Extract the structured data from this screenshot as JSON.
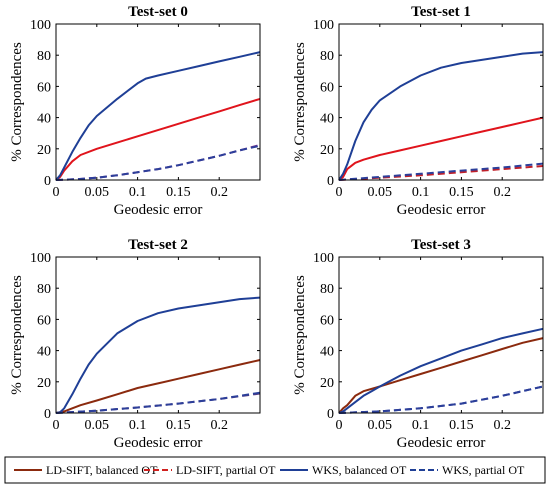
{
  "chart_data": [
    {
      "type": "line",
      "title": "Test-set 0",
      "xlabel": "Geodesic error",
      "ylabel": "% Correspondences",
      "xlim": [
        0,
        0.25
      ],
      "ylim": [
        0,
        100
      ],
      "xticks": [
        "0",
        "0.05",
        "0.1",
        "0.15",
        "0.2"
      ],
      "xtick_values": [
        0,
        0.05,
        0.1,
        0.15,
        0.2
      ],
      "yticks": [
        "0",
        "20",
        "40",
        "60",
        "80",
        "100"
      ],
      "ytick_values": [
        0,
        20,
        40,
        60,
        80,
        100
      ],
      "series": [
        {
          "key": "sift_bal",
          "x": [
            0,
            0.005,
            0.01,
            0.02,
            0.03,
            0.05,
            0.075,
            0.1,
            0.125,
            0.15,
            0.175,
            0.2,
            0.225,
            0.25
          ],
          "y": [
            0,
            2,
            6,
            12,
            16,
            20,
            24,
            28,
            32,
            36,
            40,
            44,
            48,
            52
          ]
        },
        {
          "key": "sift_par",
          "x": [
            0,
            0.025,
            0.05,
            0.075,
            0.1,
            0.125,
            0.15,
            0.175,
            0.2,
            0.225,
            0.25
          ],
          "y": [
            0,
            0.5,
            1.5,
            3,
            5,
            7,
            9.5,
            12.5,
            15.5,
            19,
            22.5
          ]
        },
        {
          "key": "wks_bal",
          "x": [
            0,
            0.005,
            0.01,
            0.02,
            0.03,
            0.04,
            0.05,
            0.075,
            0.1,
            0.11,
            0.125,
            0.15,
            0.175,
            0.2,
            0.225,
            0.25
          ],
          "y": [
            0,
            3,
            8,
            18,
            27,
            35,
            41,
            52,
            62,
            65,
            67,
            70,
            73,
            76,
            79,
            82
          ]
        },
        {
          "key": "wks_par",
          "x": [
            0,
            0.025,
            0.05,
            0.075,
            0.1,
            0.125,
            0.15,
            0.175,
            0.2,
            0.225,
            0.25
          ],
          "y": [
            0,
            0.5,
            1.5,
            3,
            5,
            7,
            9.5,
            12.5,
            15.5,
            19,
            22
          ]
        }
      ]
    },
    {
      "type": "line",
      "title": "Test-set 1",
      "xlabel": "Geodesic error",
      "ylabel": "% Correspondences",
      "xlim": [
        0,
        0.25
      ],
      "ylim": [
        0,
        100
      ],
      "xticks": [
        "0",
        "0.05",
        "0.1",
        "0.15",
        "0.2"
      ],
      "xtick_values": [
        0,
        0.05,
        0.1,
        0.15,
        0.2
      ],
      "yticks": [
        "0",
        "20",
        "40",
        "60",
        "80",
        "100"
      ],
      "ytick_values": [
        0,
        20,
        40,
        60,
        80,
        100
      ],
      "series": [
        {
          "key": "sift_bal",
          "x": [
            0,
            0.005,
            0.01,
            0.02,
            0.03,
            0.05,
            0.075,
            0.1,
            0.125,
            0.15,
            0.175,
            0.2,
            0.225,
            0.25
          ],
          "y": [
            0,
            2,
            7,
            11,
            13,
            16,
            19,
            22,
            25,
            28,
            31,
            34,
            37,
            40
          ]
        },
        {
          "key": "sift_par",
          "x": [
            0,
            0.05,
            0.1,
            0.15,
            0.2,
            0.25
          ],
          "y": [
            0,
            1.5,
            3,
            5,
            7,
            9
          ]
        },
        {
          "key": "wks_bal",
          "x": [
            0,
            0.005,
            0.01,
            0.02,
            0.03,
            0.04,
            0.05,
            0.075,
            0.1,
            0.125,
            0.15,
            0.175,
            0.2,
            0.225,
            0.25
          ],
          "y": [
            0,
            4,
            10,
            25,
            37,
            45,
            51,
            60,
            67,
            72,
            75,
            77,
            79,
            81,
            82
          ]
        },
        {
          "key": "wks_par",
          "x": [
            0,
            0.05,
            0.1,
            0.15,
            0.2,
            0.25
          ],
          "y": [
            0,
            2,
            4,
            6,
            8,
            10.5
          ]
        }
      ]
    },
    {
      "type": "line",
      "title": "Test-set 2",
      "xlabel": "Geodesic error",
      "ylabel": "% Correspondences",
      "xlim": [
        0,
        0.25
      ],
      "ylim": [
        0,
        100
      ],
      "xticks": [
        "0",
        "0.05",
        "0.1",
        "0.15",
        "0.2"
      ],
      "xtick_values": [
        0,
        0.05,
        0.1,
        0.15,
        0.2
      ],
      "yticks": [
        "0",
        "20",
        "40",
        "60",
        "80",
        "100"
      ],
      "ytick_values": [
        0,
        20,
        40,
        60,
        80,
        100
      ],
      "series": [
        {
          "key": "sift_bal",
          "x": [
            0,
            0.01,
            0.02,
            0.03,
            0.05,
            0.075,
            0.1,
            0.125,
            0.15,
            0.175,
            0.2,
            0.225,
            0.25
          ],
          "y": [
            0,
            1,
            3,
            5,
            8,
            12,
            16,
            19,
            22,
            25,
            28,
            31,
            34
          ]
        },
        {
          "key": "sift_par",
          "x": [
            0,
            0.05,
            0.1,
            0.15,
            0.2,
            0.25
          ],
          "y": [
            0,
            1.5,
            3.5,
            6,
            9,
            12.5
          ]
        },
        {
          "key": "wks_bal",
          "x": [
            0,
            0.005,
            0.01,
            0.02,
            0.03,
            0.04,
            0.05,
            0.075,
            0.1,
            0.125,
            0.15,
            0.175,
            0.2,
            0.225,
            0.25
          ],
          "y": [
            0,
            0.5,
            3,
            12,
            22,
            31,
            38,
            51,
            59,
            64,
            67,
            69,
            71,
            73,
            74
          ]
        },
        {
          "key": "wks_par",
          "x": [
            0,
            0.05,
            0.1,
            0.15,
            0.2,
            0.25
          ],
          "y": [
            0,
            1.5,
            3.5,
            6,
            9,
            13
          ]
        }
      ]
    },
    {
      "type": "line",
      "title": "Test-set 3",
      "xlabel": "Geodesic error",
      "ylabel": "% Correspondences",
      "xlim": [
        0,
        0.25
      ],
      "ylim": [
        0,
        100
      ],
      "xticks": [
        "0",
        "0.05",
        "0.1",
        "0.15",
        "0.2"
      ],
      "xtick_values": [
        0,
        0.05,
        0.1,
        0.15,
        0.2
      ],
      "yticks": [
        "0",
        "20",
        "40",
        "60",
        "80",
        "100"
      ],
      "ytick_values": [
        0,
        20,
        40,
        60,
        80,
        100
      ],
      "series": [
        {
          "key": "sift_bal",
          "x": [
            0,
            0.005,
            0.01,
            0.02,
            0.03,
            0.05,
            0.075,
            0.1,
            0.125,
            0.15,
            0.175,
            0.2,
            0.225,
            0.25
          ],
          "y": [
            0,
            3,
            5,
            11,
            14,
            17,
            21,
            25,
            29,
            33,
            37,
            41,
            45,
            48
          ]
        },
        {
          "key": "sift_par",
          "x": [
            0,
            0.05,
            0.1,
            0.15,
            0.2,
            0.25
          ],
          "y": [
            0,
            1,
            3,
            6,
            11,
            17
          ]
        },
        {
          "key": "wks_bal",
          "x": [
            0,
            0.005,
            0.01,
            0.02,
            0.03,
            0.04,
            0.05,
            0.075,
            0.1,
            0.125,
            0.15,
            0.175,
            0.2,
            0.225,
            0.25
          ],
          "y": [
            0,
            1,
            3,
            7,
            11,
            14,
            17,
            24,
            30,
            35,
            40,
            44,
            48,
            51,
            54
          ]
        },
        {
          "key": "wks_par",
          "x": [
            0,
            0.05,
            0.1,
            0.15,
            0.2,
            0.25
          ],
          "y": [
            0,
            1,
            3,
            6,
            11,
            17
          ]
        }
      ]
    }
  ],
  "legend": {
    "items": [
      {
        "key": "sift_bal",
        "label": "LD-SIFT, balanced OT",
        "color": "#8b2a0e",
        "dash": "solid"
      },
      {
        "key": "sift_par",
        "label": "LD-SIFT, partial OT",
        "color": "#d0201e",
        "dash": "dashed"
      },
      {
        "key": "wks_bal",
        "label": "WKS, balanced OT",
        "color": "#1f3f96",
        "dash": "solid"
      },
      {
        "key": "wks_par",
        "label": "WKS, partial OT",
        "color": "#1f3f96",
        "dash": "dashed"
      }
    ]
  },
  "series_colors": {
    "panel0": {
      "sift_bal": "#e0141c",
      "sift_par": "#7a2a8a",
      "wks_bal": "#1f3f96",
      "wks_par": "#2c3f9a"
    },
    "panel1": {
      "sift_bal": "#e0141c",
      "sift_par": "#c0202a",
      "wks_bal": "#1f3f96",
      "wks_par": "#2c3f9a"
    },
    "panel2": {
      "sift_bal": "#8b2a0e",
      "sift_par": "#5a3a7a",
      "wks_bal": "#1f3f96",
      "wks_par": "#2c3f9a"
    },
    "panel3": {
      "sift_bal": "#8b2a0e",
      "sift_par": "#2c3f9a",
      "wks_bal": "#1f3f96",
      "wks_par": "#2c3f9a"
    }
  }
}
